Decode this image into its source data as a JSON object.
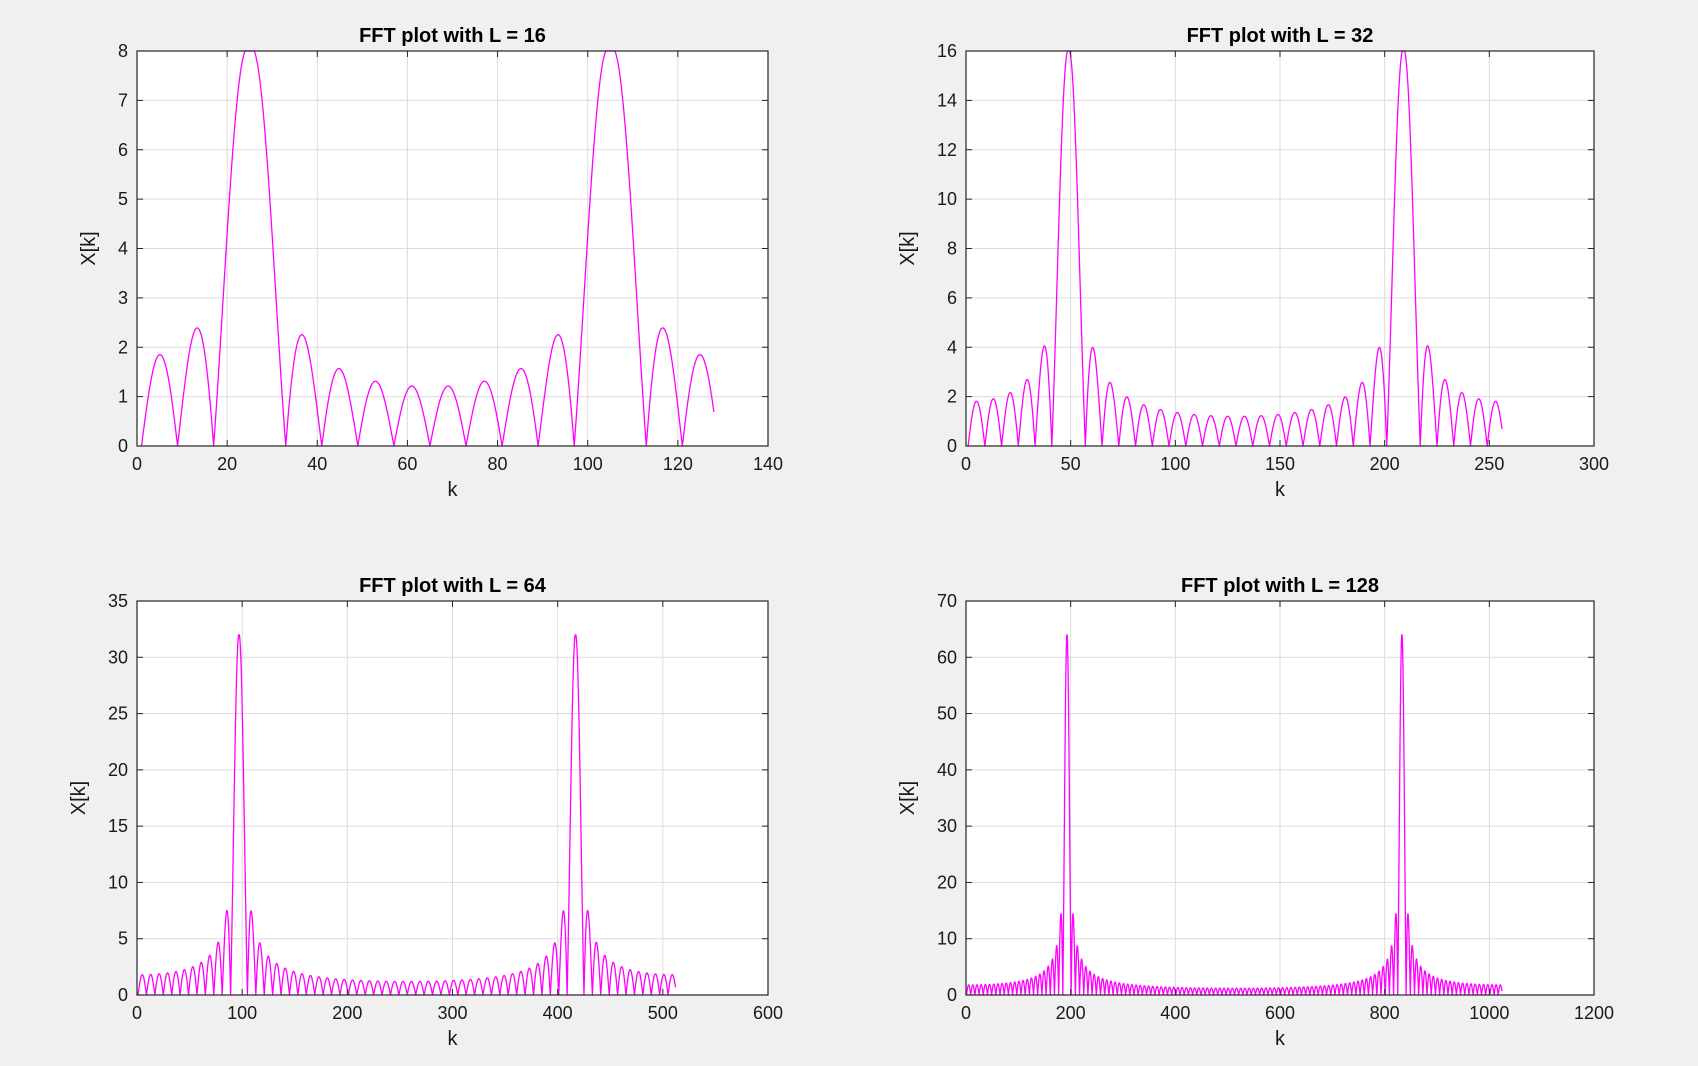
{
  "chart_data": [
    {
      "type": "line",
      "title": "FFT plot with L = 16",
      "xlabel": "k",
      "ylabel": "X[k]",
      "xlim": [
        0,
        140
      ],
      "ylim": [
        0,
        8
      ],
      "xticks": [
        0,
        20,
        40,
        60,
        80,
        100,
        120,
        140
      ],
      "yticks": [
        0,
        1,
        2,
        3,
        4,
        5,
        6,
        7,
        8
      ],
      "grid": true,
      "series": [
        {
          "name": "|X[k]|",
          "color": "#ff00ff",
          "L": 16,
          "N": 128,
          "peaks": [
            25,
            105
          ],
          "peak_value": 8,
          "x_range": [
            1,
            128
          ]
        }
      ]
    },
    {
      "type": "line",
      "title": "FFT plot with L = 32",
      "xlabel": "k",
      "ylabel": "X[k]",
      "xlim": [
        0,
        300
      ],
      "ylim": [
        0,
        16
      ],
      "xticks": [
        0,
        50,
        100,
        150,
        200,
        250,
        300
      ],
      "yticks": [
        0,
        2,
        4,
        6,
        8,
        10,
        12,
        14,
        16
      ],
      "grid": true,
      "series": [
        {
          "name": "|X[k]|",
          "color": "#ff00ff",
          "L": 32,
          "N": 256,
          "peaks": [
            49,
            209
          ],
          "peak_value": 16,
          "x_range": [
            1,
            256
          ]
        }
      ]
    },
    {
      "type": "line",
      "title": "FFT plot with L = 64",
      "xlabel": "k",
      "ylabel": "X[k]",
      "xlim": [
        0,
        600
      ],
      "ylim": [
        0,
        35
      ],
      "xticks": [
        0,
        100,
        200,
        300,
        400,
        500,
        600
      ],
      "yticks": [
        0,
        5,
        10,
        15,
        20,
        25,
        30,
        35
      ],
      "grid": true,
      "series": [
        {
          "name": "|X[k]|",
          "color": "#ff00ff",
          "L": 64,
          "N": 512,
          "peaks": [
            97,
            417
          ],
          "peak_value": 32,
          "x_range": [
            1,
            512
          ]
        }
      ]
    },
    {
      "type": "line",
      "title": "FFT plot with L = 128",
      "xlabel": "k",
      "ylabel": "X[k]",
      "xlim": [
        0,
        1200
      ],
      "ylim": [
        0,
        70
      ],
      "xticks": [
        0,
        200,
        400,
        600,
        800,
        1000,
        1200
      ],
      "yticks": [
        0,
        10,
        20,
        30,
        40,
        50,
        60,
        70
      ],
      "grid": true,
      "series": [
        {
          "name": "|X[k]|",
          "color": "#ff00ff",
          "L": 128,
          "N": 1024,
          "peaks": [
            193,
            833
          ],
          "peak_value": 64,
          "x_range": [
            1,
            1024
          ]
        }
      ]
    }
  ]
}
